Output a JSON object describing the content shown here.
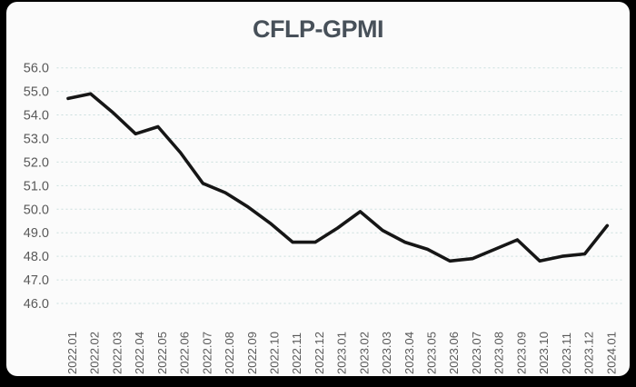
{
  "window": {
    "background": "#000000",
    "card_background": "#fbfbfb",
    "title_color": "#475059",
    "axis_text_color": "#595959"
  },
  "chart_data": {
    "type": "line",
    "title": "CFLP-GPMI",
    "xlabel": "",
    "ylabel": "",
    "categories": [
      "2022.01",
      "2022.02",
      "2022.03",
      "2022.04",
      "2022.05",
      "2022.06",
      "2022.07",
      "2022.08",
      "2022.09",
      "2022.10",
      "2022.11",
      "2022.12",
      "2023.01",
      "2023.02",
      "2023.03",
      "2023.04",
      "2023.05",
      "2023.06",
      "2023.07",
      "2023.08",
      "2023.09",
      "2023.10",
      "2023.11",
      "2023.12",
      "2024.01"
    ],
    "series": [
      {
        "name": "CFLP-GPMI",
        "color": "#161616",
        "values": [
          54.7,
          54.9,
          54.1,
          53.2,
          53.5,
          52.4,
          51.1,
          50.7,
          50.1,
          49.4,
          48.6,
          48.6,
          49.2,
          49.9,
          49.1,
          48.6,
          48.3,
          47.8,
          47.9,
          48.3,
          48.7,
          47.8,
          48.0,
          48.1,
          49.3
        ]
      }
    ],
    "ylim": [
      46.0,
      56.0
    ],
    "ytick_step": 1.0,
    "yticks": [
      46.0,
      47.0,
      48.0,
      49.0,
      50.0,
      51.0,
      52.0,
      53.0,
      54.0,
      55.0,
      56.0
    ],
    "ytick_label_format": "one_decimal",
    "x_label_rotation": -90,
    "grid": {
      "show": true,
      "style": "dashed",
      "color": "#c9dedd"
    },
    "legend": {
      "show": false
    }
  }
}
